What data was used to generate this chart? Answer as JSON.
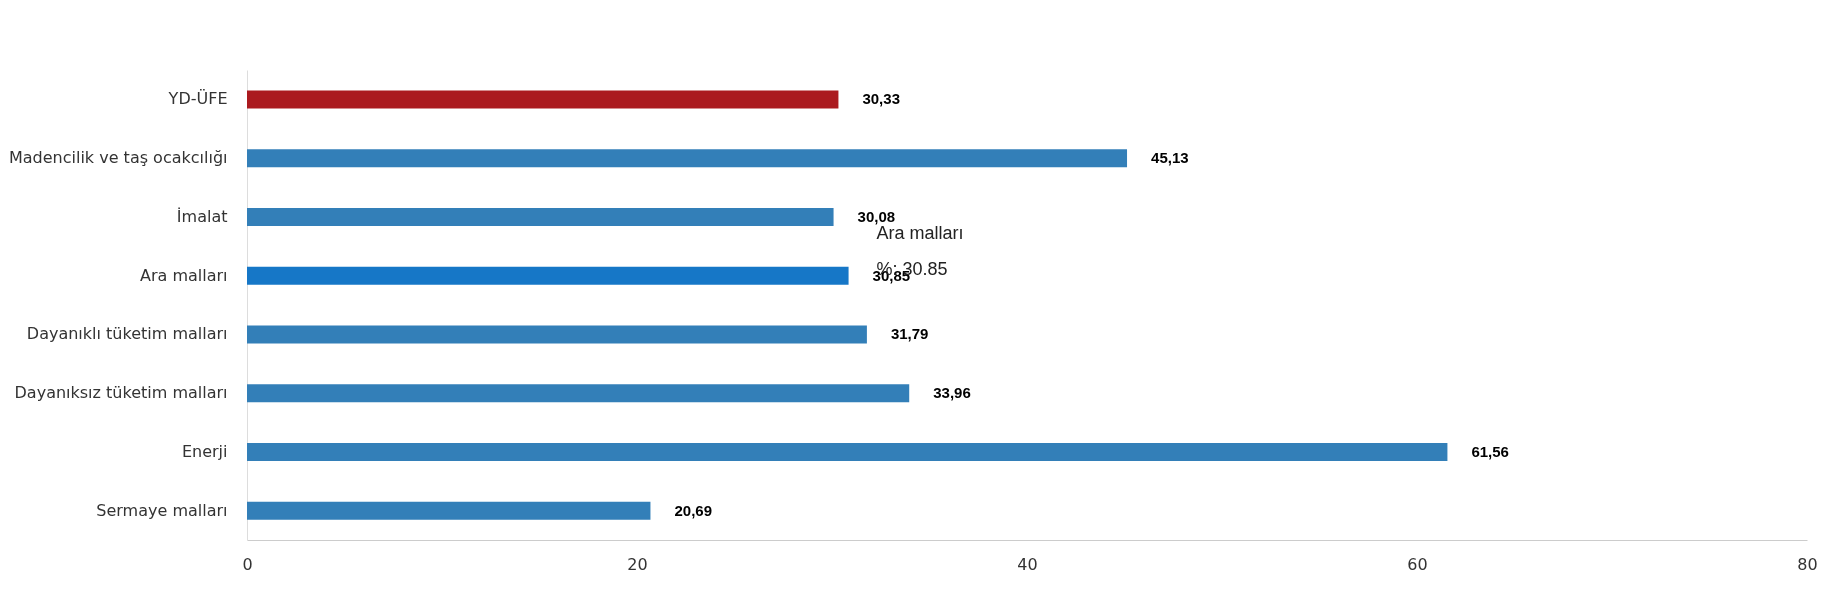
{
  "chart_data": {
    "type": "bar",
    "orientation": "horizontal",
    "categories": [
      "YD-ÜFE",
      "Madencilik ve taş ocakcılığı",
      "İmalat",
      "Ara malları",
      "Dayanıklı tüketim malları",
      "Dayanıksız tüketim malları",
      "Enerji",
      "Sermaye malları"
    ],
    "values": [
      30.33,
      45.13,
      30.08,
      30.85,
      31.79,
      33.96,
      61.56,
      20.69
    ],
    "colors": [
      "#ab1a1f",
      "#337fb8",
      "#337fb8",
      "#1677c7",
      "#337fb8",
      "#337fb8",
      "#337fb8",
      "#337fb8"
    ],
    "value_labels": [
      "30,33",
      "45,13",
      "30,08",
      "30,85",
      "31,79",
      "33,96",
      "61,56",
      "20,69"
    ],
    "xlim": [
      0,
      80
    ],
    "xticks": [
      0,
      20,
      40,
      60,
      80
    ],
    "grid": false,
    "annotations": [
      {
        "text": "Ara malları",
        "x": 30.85,
        "y": "Ara malları"
      },
      {
        "text": "%: 30.85",
        "x": 30.85,
        "y": "Ara malları"
      }
    ]
  }
}
